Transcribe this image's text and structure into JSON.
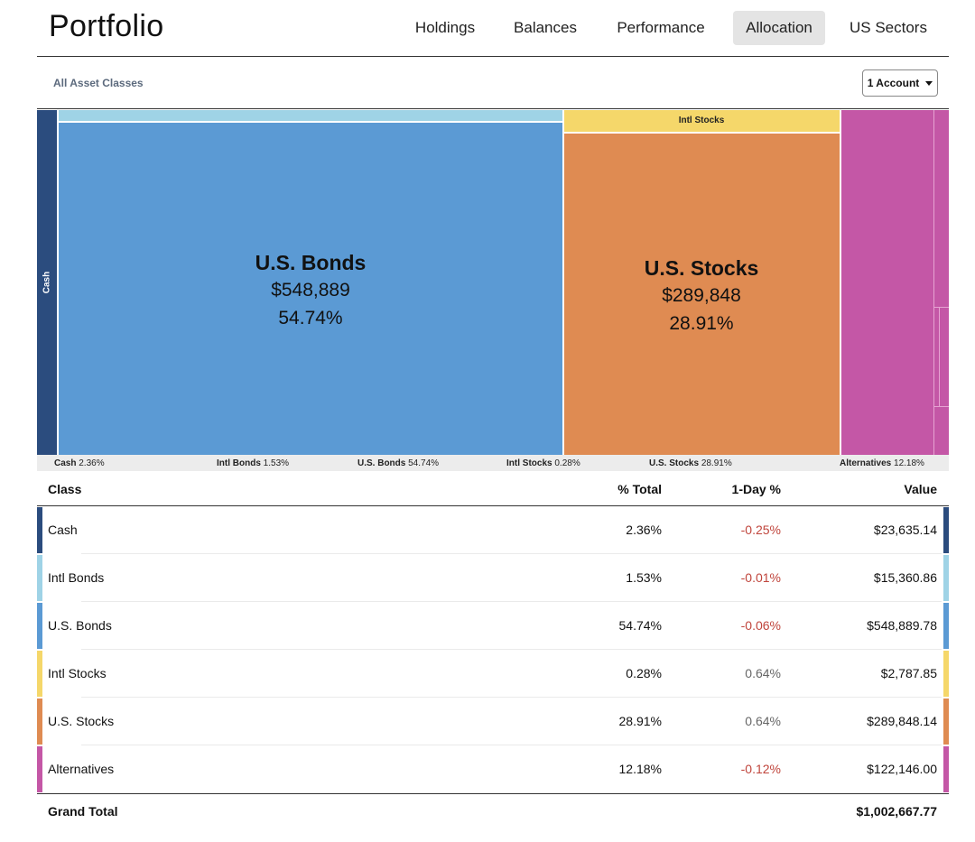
{
  "header": {
    "title": "Portfolio",
    "tabs": [
      {
        "label": "Holdings",
        "active": false
      },
      {
        "label": "Balances",
        "active": false
      },
      {
        "label": "Performance",
        "active": false
      },
      {
        "label": "Allocation",
        "active": true
      },
      {
        "label": "US Sectors",
        "active": false
      }
    ]
  },
  "filter": {
    "breadcrumb": "All Asset Classes",
    "account_button": "1 Account"
  },
  "treemap": {
    "cash_label": "Cash",
    "intl_stocks_label": "Intl Stocks",
    "us_bonds": {
      "name": "U.S. Bonds",
      "value": "$548,889",
      "pct": "54.74%"
    },
    "us_stocks": {
      "name": "U.S. Stocks",
      "value": "$289,848",
      "pct": "28.91%"
    },
    "legend": [
      {
        "name": "Cash",
        "pct": "2.36%"
      },
      {
        "name": "Intl Bonds",
        "pct": "1.53%"
      },
      {
        "name": "U.S. Bonds",
        "pct": "54.74%"
      },
      {
        "name": "Intl Stocks",
        "pct": "0.28%"
      },
      {
        "name": "U.S. Stocks",
        "pct": "28.91%"
      },
      {
        "name": "Alternatives",
        "pct": "12.18%"
      }
    ]
  },
  "table": {
    "columns": {
      "class": "Class",
      "pct_total": "% Total",
      "one_day": "1-Day %",
      "value": "Value"
    },
    "rows": [
      {
        "class": "Cash",
        "pct_total": "2.36%",
        "one_day": "-0.25%",
        "value": "$23,635.14",
        "color": "#2b4c7e",
        "change": "neg"
      },
      {
        "class": "Intl Bonds",
        "pct_total": "1.53%",
        "one_day": "-0.01%",
        "value": "$15,360.86",
        "color": "#9fd3e6",
        "change": "neg"
      },
      {
        "class": "U.S. Bonds",
        "pct_total": "54.74%",
        "one_day": "-0.06%",
        "value": "$548,889.78",
        "color": "#5b9ad4",
        "change": "neg"
      },
      {
        "class": "Intl Stocks",
        "pct_total": "0.28%",
        "one_day": "0.64%",
        "value": "$2,787.85",
        "color": "#f5d76a",
        "change": "pos"
      },
      {
        "class": "U.S. Stocks",
        "pct_total": "28.91%",
        "one_day": "0.64%",
        "value": "$289,848.14",
        "color": "#df8b52",
        "change": "pos"
      },
      {
        "class": "Alternatives",
        "pct_total": "12.18%",
        "one_day": "-0.12%",
        "value": "$122,146.00",
        "color": "#c457a6",
        "change": "neg"
      }
    ],
    "grand_total_label": "Grand Total",
    "grand_total_value": "$1,002,667.77"
  },
  "colors": {
    "cash": "#2b4c7e",
    "intl_bonds": "#9fd3e6",
    "us_bonds": "#5b9ad4",
    "intl_stocks": "#f5d76a",
    "us_stocks": "#df8b52",
    "alternatives": "#c457a6",
    "negative": "#c0453c"
  }
}
